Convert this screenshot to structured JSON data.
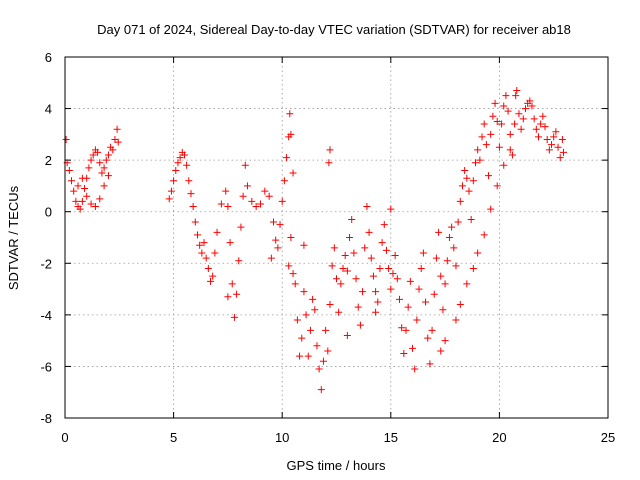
{
  "chart_data": {
    "type": "scatter",
    "title": "Day 071 of 2024, Sidereal Day-to-day VTEC variation (SDTVAR) for receiver ab18",
    "xlabel": "GPS time / hours",
    "ylabel": "SDTVAR / TECUs",
    "xlim": [
      0,
      25
    ],
    "ylim": [
      -8,
      6
    ],
    "xticks": [
      0,
      5,
      10,
      15,
      20,
      25
    ],
    "yticks": [
      -8,
      -6,
      -4,
      -2,
      0,
      2,
      4,
      6
    ],
    "grid": true,
    "marker": "+",
    "color": "#ff0000",
    "series": [
      {
        "name": "SDTVAR",
        "points": [
          [
            0.05,
            2.8
          ],
          [
            0.1,
            1.9
          ],
          [
            0.2,
            1.6
          ],
          [
            0.3,
            1.2
          ],
          [
            0.4,
            0.8
          ],
          [
            0.5,
            0.4
          ],
          [
            0.6,
            0.2
          ],
          [
            0.7,
            0.1
          ],
          [
            0.8,
            0.4
          ],
          [
            0.9,
            0.9
          ],
          [
            1.0,
            1.3
          ],
          [
            1.1,
            1.7
          ],
          [
            1.2,
            2.0
          ],
          [
            1.3,
            2.2
          ],
          [
            1.4,
            2.4
          ],
          [
            1.5,
            2.3
          ],
          [
            1.6,
            1.9
          ],
          [
            1.7,
            1.5
          ],
          [
            1.8,
            1.7
          ],
          [
            1.9,
            2.0
          ],
          [
            2.0,
            2.2
          ],
          [
            2.1,
            2.5
          ],
          [
            2.2,
            2.4
          ],
          [
            2.3,
            2.8
          ],
          [
            2.4,
            3.2
          ],
          [
            2.45,
            2.7
          ],
          [
            0.6,
            1.0
          ],
          [
            0.8,
            1.3
          ],
          [
            1.0,
            0.6
          ],
          [
            1.2,
            0.3
          ],
          [
            1.4,
            0.2
          ],
          [
            1.6,
            0.5
          ],
          [
            1.8,
            1.0
          ],
          [
            2.0,
            1.4
          ],
          [
            4.8,
            0.5
          ],
          [
            4.9,
            0.8
          ],
          [
            5.0,
            1.2
          ],
          [
            5.1,
            1.6
          ],
          [
            5.2,
            1.9
          ],
          [
            5.3,
            2.1
          ],
          [
            5.4,
            2.3
          ],
          [
            5.5,
            2.2
          ],
          [
            5.6,
            1.8
          ],
          [
            5.7,
            1.2
          ],
          [
            5.8,
            0.7
          ],
          [
            5.9,
            0.2
          ],
          [
            6.0,
            -0.4
          ],
          [
            6.1,
            -0.9
          ],
          [
            6.2,
            -1.3
          ],
          [
            6.3,
            -1.6
          ],
          [
            6.4,
            -1.2
          ],
          [
            6.5,
            -1.8
          ],
          [
            6.6,
            -2.2
          ],
          [
            6.7,
            -2.7
          ],
          [
            6.8,
            -2.5
          ],
          [
            6.9,
            -1.6
          ],
          [
            7.0,
            -0.8
          ],
          [
            7.2,
            0.3
          ],
          [
            7.4,
            0.8
          ],
          [
            7.5,
            0.2
          ],
          [
            7.6,
            -1.2
          ],
          [
            7.7,
            -2.8
          ],
          [
            7.8,
            -4.1
          ],
          [
            7.9,
            -3.2
          ],
          [
            8.0,
            -1.9
          ],
          [
            8.1,
            -0.6
          ],
          [
            8.2,
            0.6
          ],
          [
            8.3,
            1.8
          ],
          [
            8.4,
            1.0
          ],
          [
            8.6,
            0.4
          ],
          [
            8.8,
            0.2
          ],
          [
            9.0,
            0.3
          ],
          [
            9.2,
            0.8
          ],
          [
            9.4,
            0.6
          ],
          [
            9.6,
            -0.4
          ],
          [
            9.7,
            -1.1
          ],
          [
            9.8,
            -1.4
          ],
          [
            9.9,
            -0.5
          ],
          [
            10.0,
            0.4
          ],
          [
            10.1,
            1.2
          ],
          [
            10.2,
            2.1
          ],
          [
            10.3,
            2.9
          ],
          [
            10.35,
            3.8
          ],
          [
            10.4,
            3.0
          ],
          [
            10.5,
            1.5
          ],
          [
            10.4,
            -1.0
          ],
          [
            10.3,
            -2.1
          ],
          [
            10.5,
            -2.4
          ],
          [
            10.6,
            -2.8
          ],
          [
            10.7,
            -4.2
          ],
          [
            10.8,
            -5.6
          ],
          [
            10.9,
            -4.9
          ],
          [
            11.0,
            -3.1
          ],
          [
            11.1,
            -4.0
          ],
          [
            11.2,
            -5.6
          ],
          [
            11.3,
            -4.6
          ],
          [
            11.4,
            -3.4
          ],
          [
            11.5,
            -3.8
          ],
          [
            11.6,
            -5.2
          ],
          [
            11.7,
            -6.1
          ],
          [
            11.8,
            -6.9
          ],
          [
            11.9,
            -5.8
          ],
          [
            12.0,
            -4.6
          ],
          [
            12.1,
            -5.4
          ],
          [
            12.2,
            -3.6
          ],
          [
            12.3,
            -2.1
          ],
          [
            12.4,
            -1.4
          ],
          [
            12.5,
            -2.6
          ],
          [
            12.6,
            -3.9
          ],
          [
            12.7,
            -2.8
          ],
          [
            12.8,
            -2.2
          ],
          [
            12.9,
            -1.7
          ],
          [
            13.0,
            -2.3
          ],
          [
            13.1,
            -1.0
          ],
          [
            13.2,
            -0.3
          ],
          [
            13.3,
            -1.6
          ],
          [
            13.4,
            -2.6
          ],
          [
            13.5,
            -3.7
          ],
          [
            13.6,
            -4.4
          ],
          [
            13.7,
            -3.1
          ],
          [
            13.8,
            -1.4
          ],
          [
            13.9,
            0.2
          ],
          [
            14.0,
            -0.8
          ],
          [
            14.1,
            -1.8
          ],
          [
            14.2,
            -2.5
          ],
          [
            14.3,
            -3.1
          ],
          [
            14.4,
            -3.5
          ],
          [
            14.5,
            -2.2
          ],
          [
            14.6,
            -1.2
          ],
          [
            14.7,
            -0.5
          ],
          [
            14.8,
            -1.5
          ],
          [
            14.9,
            -2.2
          ],
          [
            15.0,
            -3.0
          ],
          [
            15.1,
            -2.4
          ],
          [
            15.2,
            -1.7
          ],
          [
            15.3,
            -2.6
          ],
          [
            15.4,
            -3.4
          ],
          [
            15.5,
            -4.5
          ],
          [
            15.6,
            -5.5
          ],
          [
            15.7,
            -4.6
          ],
          [
            15.8,
            -3.7
          ],
          [
            15.9,
            -2.7
          ],
          [
            16.0,
            -5.3
          ],
          [
            16.1,
            -6.1
          ],
          [
            16.2,
            -4.2
          ],
          [
            16.3,
            -3.0
          ],
          [
            16.4,
            -2.2
          ],
          [
            16.5,
            -1.6
          ],
          [
            16.6,
            -3.5
          ],
          [
            16.7,
            -4.9
          ],
          [
            16.8,
            -5.9
          ],
          [
            16.9,
            -4.6
          ],
          [
            17.0,
            -3.2
          ],
          [
            17.1,
            -1.8
          ],
          [
            17.2,
            -0.8
          ],
          [
            17.3,
            -2.5
          ],
          [
            17.4,
            -3.8
          ],
          [
            17.5,
            -2.8
          ],
          [
            17.6,
            -1.9
          ],
          [
            17.7,
            -1.0
          ],
          [
            17.8,
            -0.6
          ],
          [
            17.9,
            -1.4
          ],
          [
            18.0,
            -2.1
          ],
          [
            18.1,
            -0.4
          ],
          [
            18.2,
            0.4
          ],
          [
            18.3,
            1.0
          ],
          [
            18.4,
            1.6
          ],
          [
            18.5,
            1.3
          ],
          [
            18.6,
            0.8
          ],
          [
            18.7,
            -0.3
          ],
          [
            18.8,
            1.2
          ],
          [
            18.9,
            1.9
          ],
          [
            19.0,
            2.4
          ],
          [
            19.1,
            2.0
          ],
          [
            19.2,
            2.9
          ],
          [
            19.3,
            3.4
          ],
          [
            19.4,
            2.6
          ],
          [
            19.5,
            1.4
          ],
          [
            19.6,
            3.0
          ],
          [
            19.7,
            3.7
          ],
          [
            19.8,
            4.2
          ],
          [
            19.9,
            3.5
          ],
          [
            20.0,
            2.5
          ],
          [
            20.1,
            3.4
          ],
          [
            20.2,
            4.1
          ],
          [
            20.3,
            4.5
          ],
          [
            20.4,
            3.9
          ],
          [
            20.5,
            3.0
          ],
          [
            20.6,
            2.2
          ],
          [
            20.7,
            3.4
          ],
          [
            20.75,
            4.5
          ],
          [
            20.8,
            4.7
          ],
          [
            20.9,
            3.8
          ],
          [
            21.0,
            3.2
          ],
          [
            21.1,
            3.6
          ],
          [
            21.2,
            4.0
          ],
          [
            21.3,
            4.2
          ],
          [
            21.4,
            4.3
          ],
          [
            21.5,
            4.1
          ],
          [
            21.6,
            3.6
          ],
          [
            21.7,
            3.2
          ],
          [
            21.8,
            2.9
          ],
          [
            21.9,
            3.4
          ],
          [
            22.0,
            3.7
          ],
          [
            22.1,
            3.3
          ],
          [
            22.2,
            2.8
          ],
          [
            22.3,
            2.4
          ],
          [
            22.4,
            2.6
          ],
          [
            22.5,
            2.9
          ],
          [
            22.6,
            3.1
          ],
          [
            22.7,
            2.5
          ],
          [
            22.8,
            2.1
          ],
          [
            22.9,
            2.8
          ],
          [
            22.95,
            2.3
          ],
          [
            17.3,
            -5.4
          ],
          [
            17.5,
            -5.0
          ],
          [
            18.0,
            -4.2
          ],
          [
            18.2,
            -3.6
          ],
          [
            18.5,
            -2.8
          ],
          [
            18.8,
            -2.2
          ],
          [
            19.0,
            -1.6
          ],
          [
            19.3,
            -0.9
          ],
          [
            19.6,
            0.1
          ],
          [
            19.9,
            1.0
          ],
          [
            20.2,
            1.8
          ],
          [
            20.5,
            2.4
          ],
          [
            12.2,
            2.4
          ],
          [
            12.15,
            1.9
          ],
          [
            7.5,
            -3.3
          ],
          [
            9.5,
            -1.8
          ],
          [
            11.0,
            -1.3
          ],
          [
            13.0,
            -4.8
          ],
          [
            14.3,
            -3.9
          ],
          [
            15.0,
            0.1
          ]
        ]
      }
    ]
  }
}
